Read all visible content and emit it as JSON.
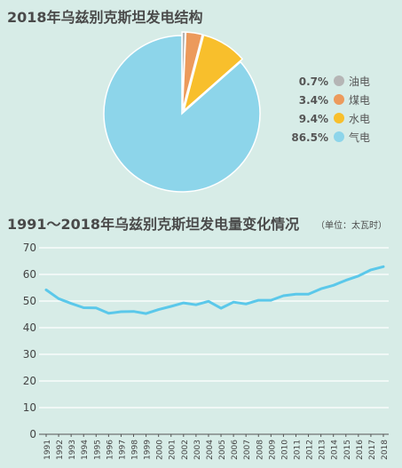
{
  "chart_data": [
    {
      "type": "pie",
      "title": "2018年乌兹别克斯坦发电结构",
      "slices": [
        {
          "label": "油电",
          "value": 0.7,
          "value_text": "0.7%",
          "color": "#b5b5b5"
        },
        {
          "label": "煤电",
          "value": 3.4,
          "value_text": "3.4%",
          "color": "#ec9a5c"
        },
        {
          "label": "水电",
          "value": 9.4,
          "value_text": "9.4%",
          "color": "#f8bf2c"
        },
        {
          "label": "气电",
          "value": 86.5,
          "value_text": "86.5%",
          "color": "#8dd5ea"
        }
      ],
      "legend_position": "right"
    },
    {
      "type": "line",
      "title": "1991～2018年乌兹别克斯坦发电量变化情况",
      "unit": "（单位：太瓦时）",
      "x": [
        "1991",
        "1992",
        "1993",
        "1994",
        "1995",
        "1996",
        "1997",
        "1998",
        "1999",
        "2000",
        "2001",
        "2002",
        "2003",
        "2004",
        "2005",
        "2006",
        "2007",
        "2008",
        "2009",
        "2010",
        "2011",
        "2012",
        "2013",
        "2014",
        "2015",
        "2016",
        "2017",
        "2018"
      ],
      "series": [
        {
          "values": [
            54.2,
            50.9,
            49.1,
            47.5,
            47.4,
            45.4,
            46.0,
            46.1,
            45.3,
            46.8,
            48.0,
            49.3,
            48.6,
            49.9,
            47.3,
            49.6,
            48.9,
            50.3,
            50.3,
            52.0,
            52.6,
            52.6,
            54.6,
            55.9,
            57.8,
            59.4,
            61.7,
            62.9
          ],
          "color": "#5bc8ea"
        }
      ],
      "ylim": [
        0,
        70
      ],
      "yticks": [
        "0",
        "10",
        "20",
        "30",
        "40",
        "50",
        "60",
        "70"
      ],
      "grid": "horizontal"
    }
  ]
}
